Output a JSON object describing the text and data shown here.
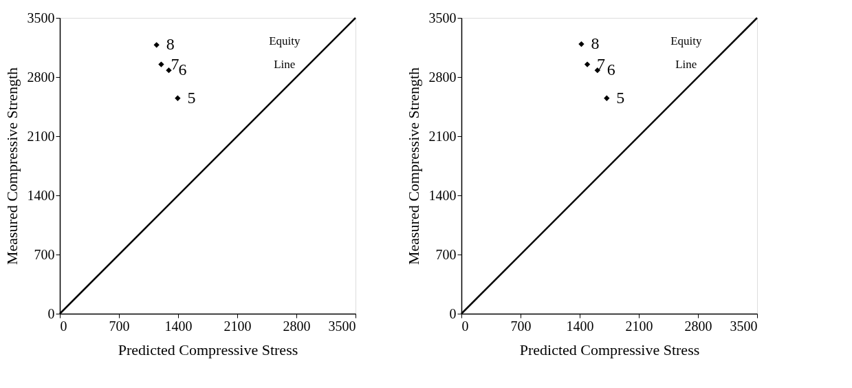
{
  "chart_data": [
    {
      "type": "scatter",
      "xlabel": "Predicted Compressive Stress",
      "ylabel": "Measured Compressive Strength",
      "xlim": [
        0,
        3500
      ],
      "ylim": [
        0,
        3500
      ],
      "xticks": [
        0,
        700,
        1400,
        2100,
        2800,
        3500
      ],
      "yticks": [
        0,
        700,
        1400,
        2100,
        2800,
        3500
      ],
      "grid": false,
      "series": [
        {
          "color": "#000000",
          "marker": "diamond",
          "x": [
            1145,
            1200,
            1290,
            1395
          ],
          "values": [
            3180,
            2950,
            2880,
            2550
          ]
        },
        {
          "type": "line",
          "color": "#000000",
          "marker": "none",
          "x": [
            0,
            3500
          ],
          "values": [
            0,
            3500
          ]
        }
      ],
      "annotations": [
        {
          "text": "8",
          "x": 1145,
          "y": 3180
        },
        {
          "text": "7",
          "x": 1200,
          "y": 2950
        },
        {
          "text": "6",
          "x": 1290,
          "y": 2880
        },
        {
          "text": "5",
          "x": 1395,
          "y": 2550
        },
        "Equity Line"
      ]
    },
    {
      "type": "scatter",
      "xlabel": "Predicted Compressive Stress",
      "ylabel": "Measured Compressive Strength",
      "xlim": [
        0,
        3500
      ],
      "ylim": [
        0,
        3500
      ],
      "xticks": [
        0,
        700,
        1400,
        2100,
        2800,
        3500
      ],
      "yticks": [
        0,
        700,
        1400,
        2100,
        2800,
        3500
      ],
      "grid": false,
      "series": [
        {
          "color": "#000000",
          "marker": "diamond",
          "x": [
            1420,
            1490,
            1610,
            1720
          ],
          "values": [
            3190,
            2950,
            2880,
            2550
          ]
        },
        {
          "type": "line",
          "color": "#000000",
          "marker": "none",
          "x": [
            0,
            3500
          ],
          "values": [
            0,
            3500
          ]
        }
      ],
      "annotations": [
        {
          "text": "8",
          "x": 1420,
          "y": 3190
        },
        {
          "text": "7",
          "x": 1490,
          "y": 2950
        },
        {
          "text": "6",
          "x": 1610,
          "y": 2880
        },
        {
          "text": "5",
          "x": 1720,
          "y": 2550
        },
        "Equity Line"
      ]
    }
  ]
}
